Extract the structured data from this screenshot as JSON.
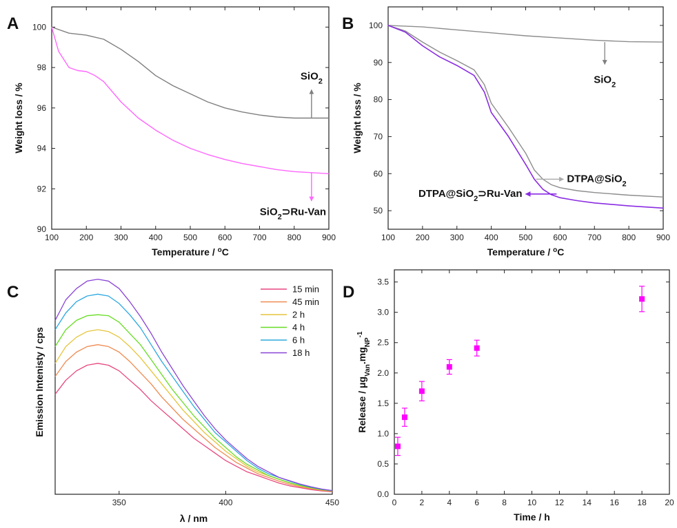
{
  "chart_data": [
    {
      "panel": "A",
      "type": "line",
      "xlabel": "Temperature / °C",
      "ylabel": "Weight loss / %",
      "xlim": [
        100,
        900
      ],
      "ylim": [
        90,
        101
      ],
      "xticks": [
        100,
        200,
        300,
        400,
        500,
        600,
        700,
        800,
        900
      ],
      "yticks": [
        90,
        92,
        94,
        96,
        98,
        100
      ],
      "series": [
        {
          "color": "#7f7f7f",
          "x": [
            100,
            150,
            200,
            250,
            300,
            350,
            400,
            450,
            500,
            550,
            600,
            650,
            700,
            750,
            800,
            850,
            900
          ],
          "y": [
            100,
            99.7,
            99.6,
            99.4,
            98.9,
            98.3,
            97.6,
            97.1,
            96.7,
            96.3,
            96.0,
            95.8,
            95.65,
            95.55,
            95.5,
            95.5,
            95.5
          ]
        },
        {
          "color": "#ff66ff",
          "x": [
            100,
            120,
            150,
            175,
            200,
            225,
            250,
            300,
            350,
            400,
            450,
            500,
            550,
            600,
            650,
            700,
            750,
            800,
            850,
            900
          ],
          "y": [
            100,
            98.8,
            98.0,
            97.85,
            97.8,
            97.6,
            97.3,
            96.3,
            95.5,
            94.9,
            94.4,
            94.0,
            93.7,
            93.45,
            93.25,
            93.1,
            92.95,
            92.85,
            92.8,
            92.75
          ]
        }
      ],
      "annotations": [
        {
          "label": "SiO",
          "sub": "2",
          "suffix": "",
          "arrow_color": "#7f7f7f"
        },
        {
          "label": "SiO",
          "sub": "2",
          "suffix": "⊃Ru-Van",
          "arrow_color": "#ff66ff"
        }
      ]
    },
    {
      "panel": "B",
      "type": "line",
      "xlabel": "Temperature / °C",
      "ylabel": "Weight loss / %",
      "xlim": [
        100,
        900
      ],
      "ylim": [
        45,
        105
      ],
      "xticks": [
        100,
        200,
        300,
        400,
        500,
        600,
        700,
        800,
        900
      ],
      "yticks": [
        50,
        60,
        70,
        80,
        90,
        100
      ],
      "series": [
        {
          "color": "#8c8c8c",
          "x": [
            100,
            200,
            300,
            400,
            500,
            600,
            700,
            800,
            900
          ],
          "y": [
            100,
            99.6,
            98.8,
            98.0,
            97.2,
            96.6,
            96.0,
            95.6,
            95.5
          ]
        },
        {
          "color": "#8c8c8c",
          "x": [
            100,
            150,
            200,
            250,
            300,
            350,
            380,
            400,
            450,
            500,
            525,
            550,
            575,
            600,
            650,
            700,
            800,
            900
          ],
          "y": [
            100,
            98.5,
            95.5,
            92.8,
            90.5,
            88.0,
            84.0,
            79.0,
            72.5,
            65.5,
            61.0,
            58.5,
            57.0,
            56.2,
            55.4,
            54.9,
            54.2,
            53.7
          ]
        },
        {
          "color": "#8a2be2",
          "x": [
            100,
            150,
            200,
            250,
            300,
            350,
            380,
            400,
            450,
            500,
            525,
            550,
            575,
            600,
            650,
            700,
            800,
            900
          ],
          "y": [
            100,
            98.2,
            94.5,
            91.5,
            89.2,
            86.5,
            82.0,
            76.5,
            70.0,
            62.5,
            58.5,
            55.8,
            54.3,
            53.5,
            52.7,
            52.1,
            51.3,
            50.7
          ]
        }
      ],
      "annotations": [
        {
          "label": "SiO",
          "sub": "2",
          "suffix": "",
          "arrow_color": "#8c8c8c"
        },
        {
          "label": "DTPA@SiO",
          "sub": "2",
          "suffix": "",
          "arrow_color": "#aaaaaa"
        },
        {
          "label": "DTPA@SiO",
          "sub": "2",
          "suffix": "⊃Ru-Van",
          "arrow_color": "#8a2be2"
        }
      ]
    },
    {
      "panel": "C",
      "type": "line",
      "xlabel": "λ / nm",
      "ylabel": "Emission Intenisty / cps",
      "xlim": [
        320,
        450
      ],
      "xticks": [
        350,
        400,
        450
      ],
      "x": [
        320,
        325,
        330,
        335,
        340,
        345,
        350,
        355,
        360,
        365,
        370,
        375,
        380,
        385,
        390,
        395,
        400,
        405,
        410,
        415,
        420,
        425,
        430,
        435,
        440,
        445,
        450
      ],
      "series": [
        {
          "name": "15 min",
          "color": "#e8457f",
          "values": [
            0.535,
            0.61,
            0.66,
            0.69,
            0.7,
            0.69,
            0.66,
            0.61,
            0.56,
            0.5,
            0.45,
            0.4,
            0.35,
            0.3,
            0.26,
            0.22,
            0.18,
            0.15,
            0.12,
            0.1,
            0.08,
            0.06,
            0.045,
            0.035,
            0.025,
            0.018,
            0.013
          ]
        },
        {
          "name": "45 min",
          "color": "#ef8a50",
          "values": [
            0.63,
            0.71,
            0.76,
            0.79,
            0.8,
            0.79,
            0.76,
            0.71,
            0.65,
            0.59,
            0.52,
            0.46,
            0.4,
            0.35,
            0.3,
            0.25,
            0.21,
            0.17,
            0.14,
            0.11,
            0.09,
            0.07,
            0.053,
            0.04,
            0.03,
            0.021,
            0.015
          ]
        },
        {
          "name": "2 h",
          "color": "#e6c43a",
          "values": [
            0.7,
            0.79,
            0.84,
            0.87,
            0.88,
            0.87,
            0.84,
            0.79,
            0.73,
            0.66,
            0.59,
            0.52,
            0.45,
            0.39,
            0.33,
            0.28,
            0.23,
            0.19,
            0.15,
            0.12,
            0.1,
            0.08,
            0.06,
            0.045,
            0.033,
            0.024,
            0.017
          ]
        },
        {
          "name": "4 h",
          "color": "#66dd22",
          "values": [
            0.79,
            0.88,
            0.93,
            0.955,
            0.96,
            0.955,
            0.92,
            0.86,
            0.8,
            0.72,
            0.64,
            0.56,
            0.49,
            0.42,
            0.36,
            0.3,
            0.25,
            0.2,
            0.16,
            0.13,
            0.1,
            0.08,
            0.062,
            0.047,
            0.035,
            0.025,
            0.018
          ]
        },
        {
          "name": "6 h",
          "color": "#2aa8e0",
          "values": [
            0.88,
            0.97,
            1.03,
            1.06,
            1.07,
            1.06,
            1.02,
            0.96,
            0.89,
            0.8,
            0.71,
            0.63,
            0.55,
            0.47,
            0.4,
            0.33,
            0.28,
            0.23,
            0.18,
            0.14,
            0.11,
            0.09,
            0.07,
            0.052,
            0.038,
            0.027,
            0.019
          ]
        },
        {
          "name": "18 h",
          "color": "#8a44d6",
          "values": [
            0.93,
            1.04,
            1.1,
            1.14,
            1.15,
            1.14,
            1.1,
            1.03,
            0.95,
            0.86,
            0.76,
            0.67,
            0.58,
            0.5,
            0.42,
            0.35,
            0.29,
            0.24,
            0.19,
            0.15,
            0.12,
            0.09,
            0.072,
            0.054,
            0.04,
            0.028,
            0.02
          ]
        }
      ]
    },
    {
      "panel": "D",
      "type": "scatter",
      "xlabel": "Time / h",
      "ylabel": "Release / μg",
      "ylabel_sub1": "Van",
      "ylabel_mid": ".mg",
      "ylabel_sub2": "NP",
      "ylabel_sup": "-1",
      "xlim": [
        0,
        20
      ],
      "ylim": [
        0,
        3.7
      ],
      "xticks": [
        0,
        2,
        4,
        6,
        8,
        10,
        12,
        14,
        16,
        18,
        20
      ],
      "yticks": [
        0.0,
        0.5,
        1.0,
        1.5,
        2.0,
        2.5,
        3.0,
        3.5
      ],
      "ytick_labels": [
        "0.0",
        "0.5",
        "1.0",
        "1.5",
        "2.0",
        "2.5",
        "3.0",
        "3.5"
      ],
      "color": "#ff00ff",
      "x": [
        0.25,
        0.75,
        2,
        4,
        6,
        18
      ],
      "y": [
        0.79,
        1.27,
        1.7,
        2.1,
        2.41,
        3.22
      ],
      "err": [
        0.15,
        0.15,
        0.16,
        0.12,
        0.13,
        0.21
      ]
    }
  ]
}
